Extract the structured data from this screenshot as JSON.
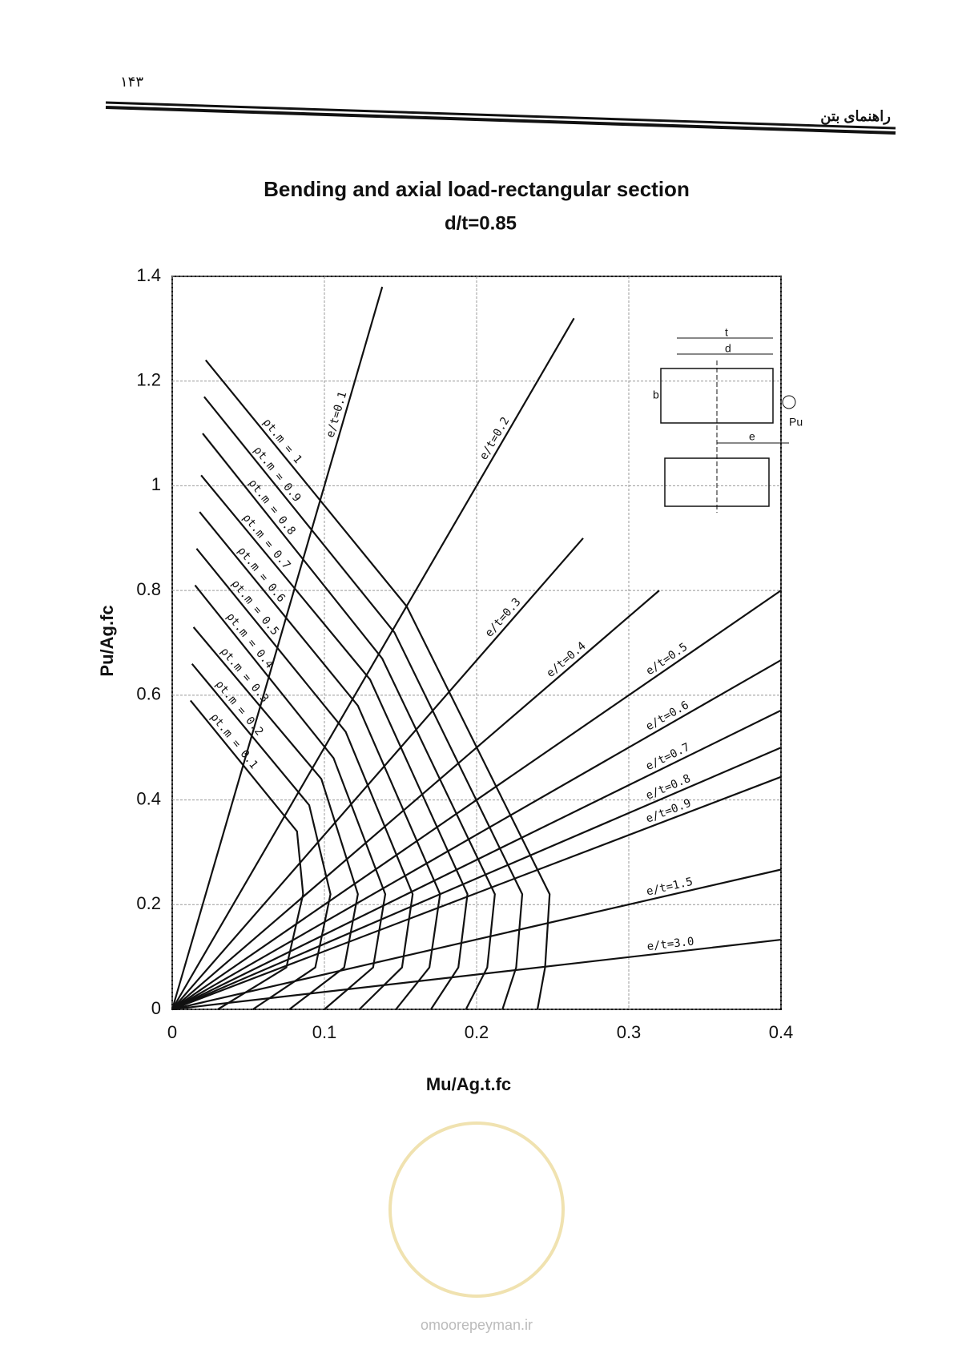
{
  "header": {
    "page_number": "۱۴۳",
    "title": "راهنمای بتن"
  },
  "chart_data": {
    "type": "line",
    "title": "Bending and axial load-rectangular section",
    "subtitle": "d/t=0.85",
    "x_label": "Mu/Ag.t.fc",
    "y_label": "Pu/Ag.fc",
    "xlim": [
      0,
      0.4
    ],
    "ylim": [
      0,
      1.4
    ],
    "xticks": [
      0,
      0.1,
      0.2,
      0.3,
      0.4
    ],
    "yticks": [
      0,
      0.2,
      0.4,
      0.6,
      0.8,
      1,
      1.2,
      1.4
    ],
    "grid": true,
    "color": "#111",
    "series": [
      {
        "name": "ρt.m = 0.1",
        "x": [
          0.012,
          0.082,
          0.086,
          0.075,
          0.03
        ],
        "values": [
          0.59,
          0.34,
          0.22,
          0.08,
          0
        ]
      },
      {
        "name": "ρt.m = 0.2",
        "x": [
          0.013,
          0.09,
          0.104,
          0.094,
          0.053
        ],
        "values": [
          0.66,
          0.39,
          0.22,
          0.08,
          0
        ]
      },
      {
        "name": "ρt.m = 0.3",
        "x": [
          0.014,
          0.098,
          0.122,
          0.113,
          0.077
        ],
        "values": [
          0.73,
          0.44,
          0.22,
          0.08,
          0
        ]
      },
      {
        "name": "ρt.m = 0.4",
        "x": [
          0.015,
          0.106,
          0.14,
          0.132,
          0.1
        ],
        "values": [
          0.81,
          0.48,
          0.22,
          0.08,
          0
        ]
      },
      {
        "name": "ρt.m = 0.5",
        "x": [
          0.016,
          0.114,
          0.158,
          0.151,
          0.123
        ],
        "values": [
          0.88,
          0.53,
          0.22,
          0.08,
          0
        ]
      },
      {
        "name": "ρt.m = 0.6",
        "x": [
          0.018,
          0.122,
          0.176,
          0.169,
          0.147
        ],
        "values": [
          0.95,
          0.58,
          0.22,
          0.08,
          0
        ]
      },
      {
        "name": "ρt.m = 0.7",
        "x": [
          0.019,
          0.13,
          0.194,
          0.188,
          0.17
        ],
        "values": [
          1.02,
          0.63,
          0.22,
          0.08,
          0
        ]
      },
      {
        "name": "ρt.m = 0.8",
        "x": [
          0.02,
          0.138,
          0.212,
          0.207,
          0.193
        ],
        "values": [
          1.1,
          0.67,
          0.22,
          0.08,
          0
        ]
      },
      {
        "name": "ρt.m = 0.9",
        "x": [
          0.021,
          0.146,
          0.23,
          0.226,
          0.217
        ],
        "values": [
          1.17,
          0.72,
          0.22,
          0.08,
          0
        ]
      },
      {
        "name": "ρt.m = 1",
        "x": [
          0.022,
          0.154,
          0.248,
          0.245,
          0.24
        ],
        "values": [
          1.24,
          0.77,
          0.22,
          0.08,
          0
        ]
      },
      {
        "name": "e/t=0.1",
        "x": [
          0,
          0.138
        ],
        "values": [
          0,
          1.38
        ]
      },
      {
        "name": "e/t=0.2",
        "x": [
          0,
          0.264
        ],
        "values": [
          0,
          1.32
        ]
      },
      {
        "name": "e/t=0.3",
        "x": [
          0,
          0.27
        ],
        "values": [
          0,
          0.9
        ]
      },
      {
        "name": "e/t=0.4",
        "x": [
          0,
          0.32
        ],
        "values": [
          0,
          0.8
        ]
      },
      {
        "name": "e/t=0.5",
        "x": [
          0,
          0.4
        ],
        "values": [
          0,
          0.8
        ]
      },
      {
        "name": "e/t=0.6",
        "x": [
          0,
          0.4
        ],
        "values": [
          0,
          0.667
        ]
      },
      {
        "name": "e/t=0.7",
        "x": [
          0,
          0.4
        ],
        "values": [
          0,
          0.571
        ]
      },
      {
        "name": "e/t=0.8",
        "x": [
          0,
          0.4
        ],
        "values": [
          0,
          0.5
        ]
      },
      {
        "name": "e/t=0.9",
        "x": [
          0,
          0.4
        ],
        "values": [
          0,
          0.444
        ]
      },
      {
        "name": "e/t=1.5",
        "x": [
          0,
          0.4
        ],
        "values": [
          0,
          0.267
        ]
      },
      {
        "name": "e/t=3.0",
        "x": [
          0,
          0.4
        ],
        "values": [
          0,
          0.133
        ]
      }
    ],
    "inset_labels": [
      "t",
      "d",
      "b",
      "e",
      "Pu"
    ]
  },
  "footer": {
    "watermark": "omoorepeyman.ir"
  }
}
